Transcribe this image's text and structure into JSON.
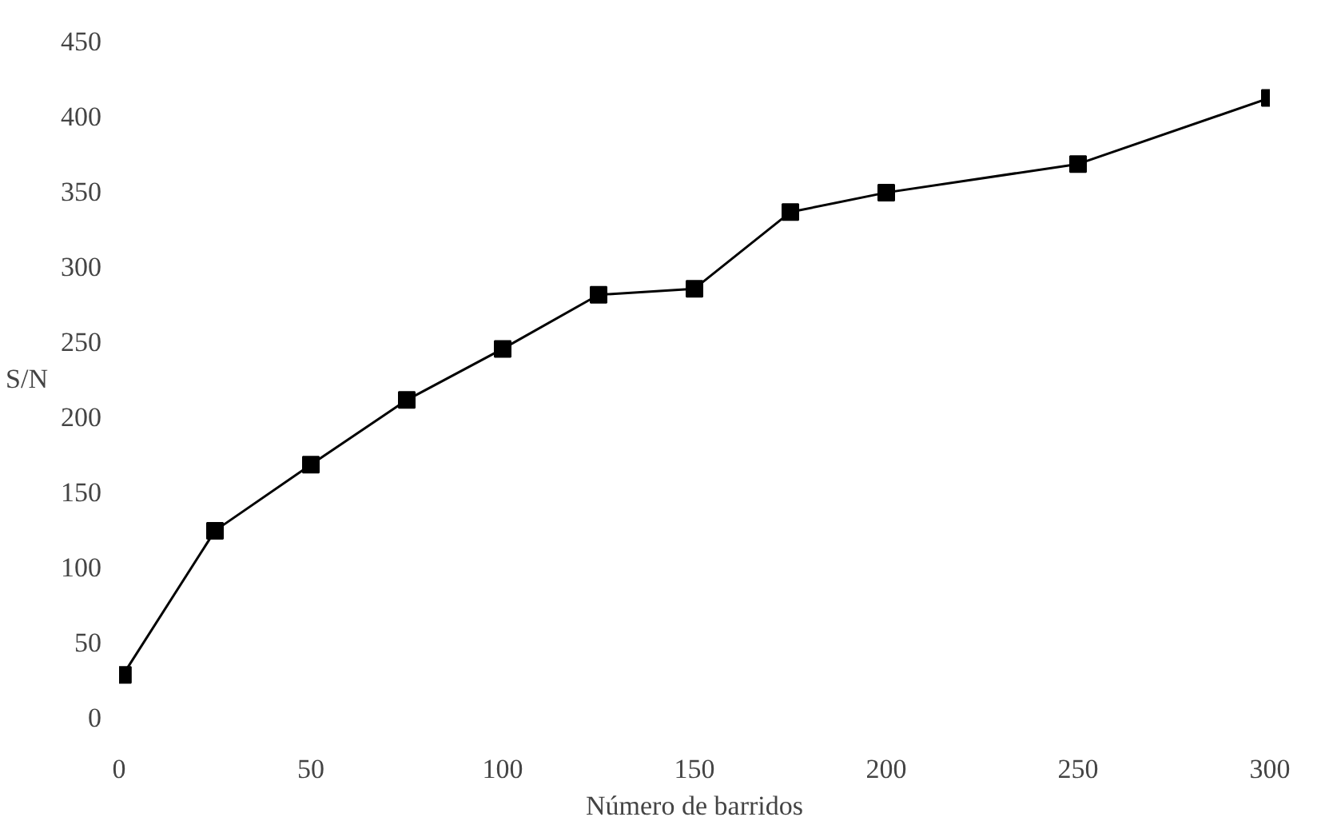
{
  "chart_data": {
    "type": "line",
    "xlabel": "Número de barridos",
    "ylabel": "S/N",
    "x": [
      1,
      25,
      50,
      75,
      100,
      125,
      150,
      175,
      200,
      250,
      300
    ],
    "series": [
      {
        "color": "#000000",
        "values": [
          28,
          124,
          168,
          211,
          245,
          281,
          285,
          336,
          349,
          368,
          412
        ]
      }
    ],
    "xlim": [
      0,
      300
    ],
    "ylim": [
      0,
      450
    ],
    "xticks": [
      0,
      50,
      100,
      150,
      200,
      250,
      300
    ],
    "yticks": [
      0,
      50,
      100,
      150,
      200,
      250,
      300,
      350,
      400,
      450
    ],
    "grid": false,
    "marker": "square",
    "line_style": "solid"
  }
}
